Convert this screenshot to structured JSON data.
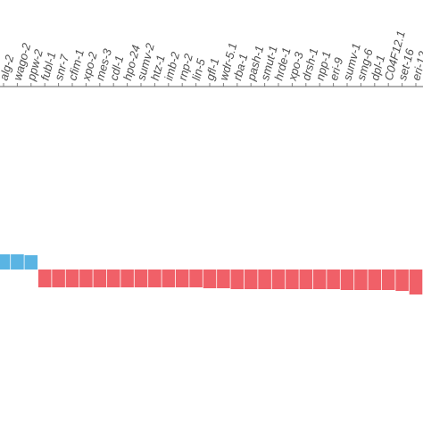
{
  "chart_data": {
    "type": "bar",
    "title": "",
    "xlabel": "",
    "ylabel": "",
    "categories": [
      "alg-2",
      "wago-2",
      "ppw-2",
      "fubl-1",
      "snr-7",
      "cfim-1",
      "xpo-2",
      "mes-3",
      "cdl-1",
      "hpo-24",
      "sumv-2",
      "htz-1",
      "imb-2",
      "rnp-2",
      "lin-5",
      "gfl-1",
      "wdr-5.1",
      "rba-1",
      "pash-1",
      "smut-1",
      "hrde-1",
      "xpo-3",
      "drsh-1",
      "npp-1",
      "eri-9",
      "sumv-1",
      "smg-6",
      "dpl-1",
      "C04F12.1",
      "set-16",
      "eri-12"
    ],
    "values": [
      0.85,
      0.85,
      0.8,
      -1.0,
      -1.0,
      -1.0,
      -1.0,
      -1.0,
      -1.0,
      -1.0,
      -1.0,
      -1.0,
      -1.0,
      -1.0,
      -1.0,
      -1.05,
      -1.05,
      -1.1,
      -1.1,
      -1.1,
      -1.1,
      -1.1,
      -1.1,
      -1.1,
      -1.1,
      -1.15,
      -1.15,
      -1.15,
      -1.15,
      -1.2,
      -1.4
    ],
    "colors": {
      "positive": "#5ab4e3",
      "negative": "#f06068",
      "axis": "#7f7f7f"
    },
    "legend": "none",
    "grid": false
  }
}
